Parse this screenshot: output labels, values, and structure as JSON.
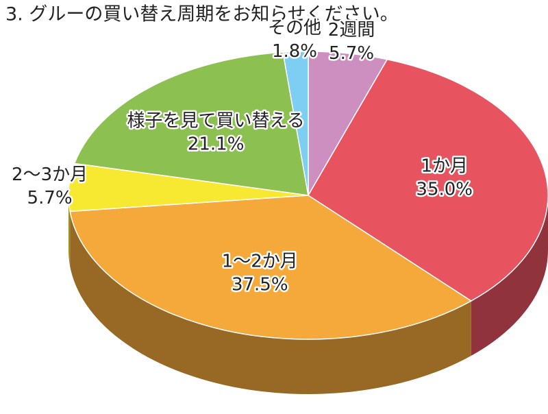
{
  "chart_data": {
    "type": "pie3d",
    "title": "3. グルーの買い替え周期をお知らせください。",
    "categories": [
      "2週間",
      "1か月",
      "1〜2か月",
      "2〜3か月",
      "様子を見て買い替える",
      "その他"
    ],
    "values": [
      5.7,
      35.0,
      37.5,
      5.7,
      21.1,
      1.8
    ],
    "value_labels": [
      "5.7%",
      "35.0%",
      "37.5%",
      "5.7%",
      "21.1%",
      "1.8%"
    ],
    "colors": [
      "#cc8fc0",
      "#e85360",
      "#f4a93a",
      "#f7e832",
      "#8cc152",
      "#7ecef4"
    ]
  }
}
